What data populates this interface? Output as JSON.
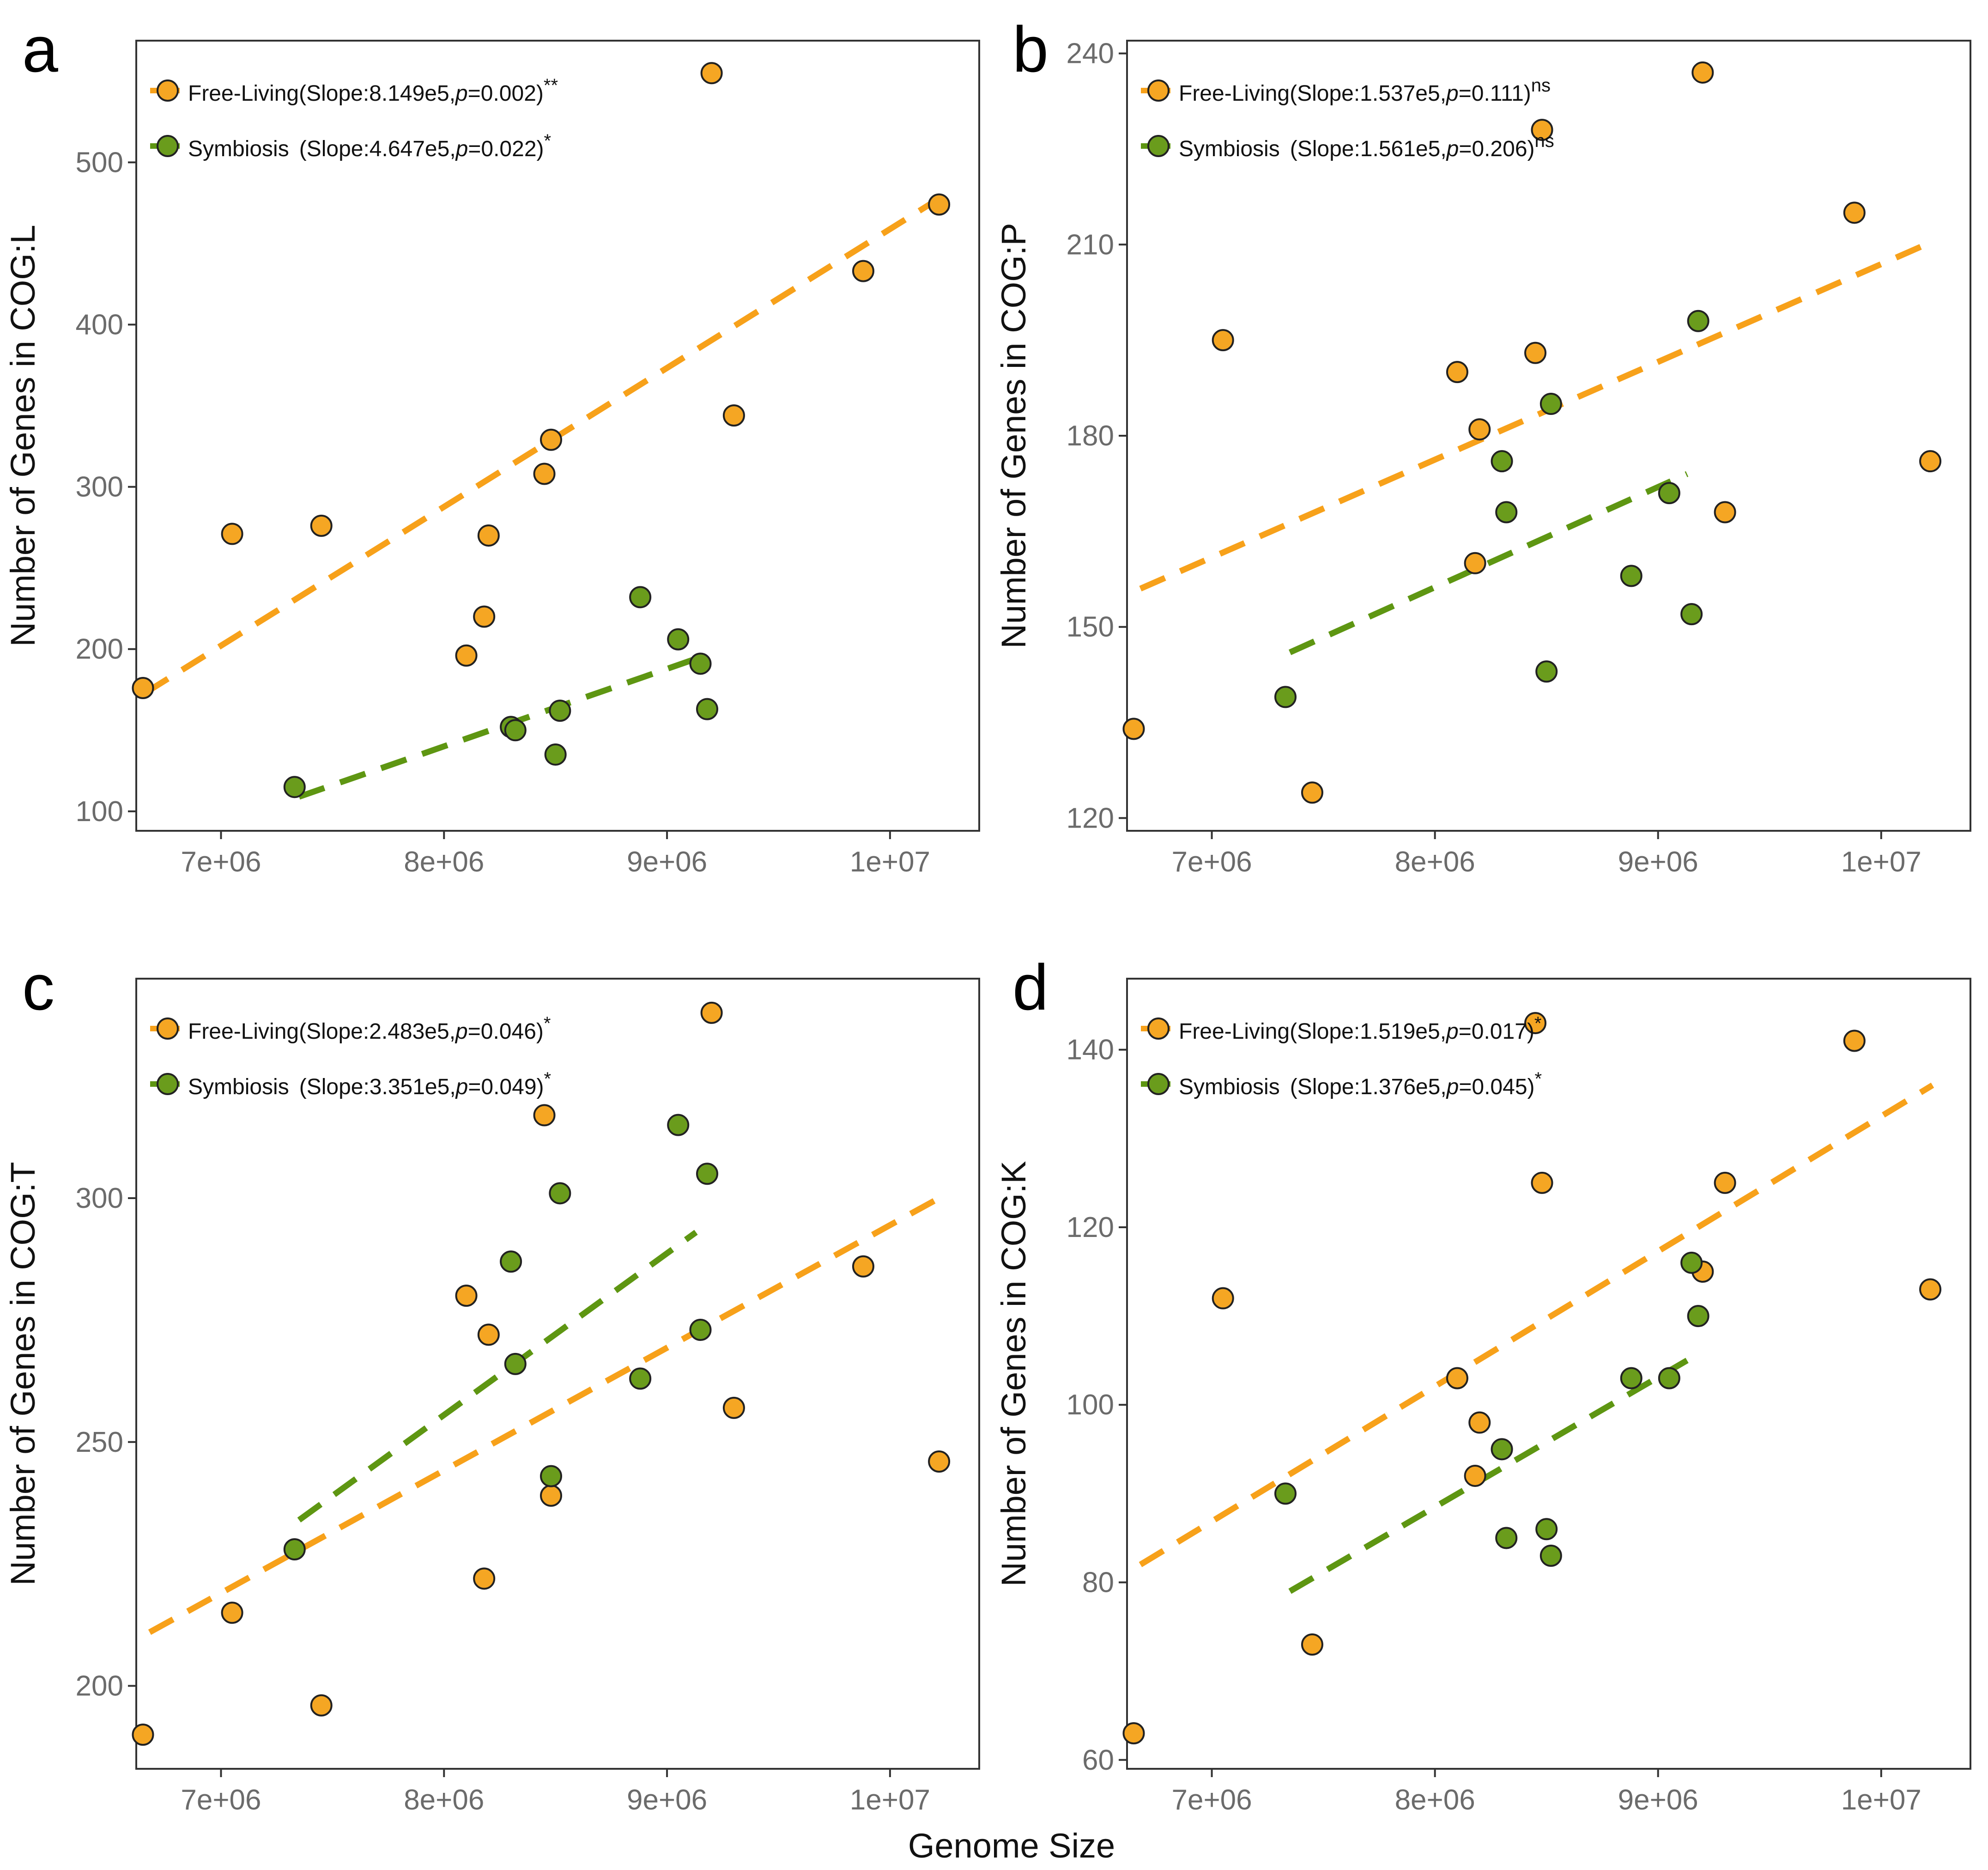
{
  "figure": {
    "xlabel": "Genome Size"
  },
  "colors": {
    "free_living": "#F5A623",
    "symbiosis": "#6A9C1C",
    "free_living_line": "#F7A11A",
    "symbiosis_line": "#5E9612",
    "axis": "#333333",
    "tick_label": "#6b6b6b",
    "marker_edge": "#222222"
  },
  "chart_data": [
    {
      "panel": "a",
      "type": "scatter",
      "ylabel": "Number of Genes in COG:L",
      "xlim": [
        6620000,
        10400000
      ],
      "ylim": [
        88,
        575
      ],
      "xticks": [
        {
          "v": 7000000,
          "label": "7e+06"
        },
        {
          "v": 8000000,
          "label": "8e+06"
        },
        {
          "v": 9000000,
          "label": "9e+06"
        },
        {
          "v": 10000000,
          "label": "1e+07"
        }
      ],
      "yticks": [
        {
          "v": 100,
          "label": "100"
        },
        {
          "v": 200,
          "label": "200"
        },
        {
          "v": 300,
          "label": "300"
        },
        {
          "v": 400,
          "label": "400"
        },
        {
          "v": 500,
          "label": "500"
        }
      ],
      "series": [
        {
          "name": "Free-Living",
          "legend": {
            "stat": "(Slope:8.149e5,",
            "p": "p",
            "pval": "=0.002)",
            "sig": "**"
          },
          "trend": [
            [
              6660000,
              173
            ],
            [
              10200000,
              476
            ]
          ],
          "points": [
            [
              6650000,
              176
            ],
            [
              7050000,
              271
            ],
            [
              7450000,
              276
            ],
            [
              8100000,
              196
            ],
            [
              8180000,
              220
            ],
            [
              8200000,
              270
            ],
            [
              8450000,
              308
            ],
            [
              8480000,
              329
            ],
            [
              9200000,
              555
            ],
            [
              9300000,
              344
            ],
            [
              9880000,
              433
            ],
            [
              10220000,
              474
            ]
          ]
        },
        {
          "name": "Symbiosis",
          "legend": {
            "stat": "(Slope:4.647e5,",
            "p": "p",
            "pval": "=0.022)",
            "sig": "*"
          },
          "trend": [
            [
              7350000,
              109
            ],
            [
              9150000,
              195
            ]
          ],
          "points": [
            [
              7330000,
              115
            ],
            [
              8300000,
              152
            ],
            [
              8320000,
              150
            ],
            [
              8500000,
              135
            ],
            [
              8520000,
              162
            ],
            [
              8880000,
              232
            ],
            [
              9050000,
              206
            ],
            [
              9150000,
              191
            ],
            [
              9180000,
              163
            ]
          ]
        }
      ]
    },
    {
      "panel": "b",
      "type": "scatter",
      "ylabel": "Number of Genes in COG:P",
      "xlim": [
        6620000,
        10400000
      ],
      "ylim": [
        118,
        242
      ],
      "xticks": [
        {
          "v": 7000000,
          "label": "7e+06"
        },
        {
          "v": 8000000,
          "label": "8e+06"
        },
        {
          "v": 9000000,
          "label": "9e+06"
        },
        {
          "v": 10000000,
          "label": "1e+07"
        }
      ],
      "yticks": [
        {
          "v": 120,
          "label": "120"
        },
        {
          "v": 150,
          "label": "150"
        },
        {
          "v": 180,
          "label": "180"
        },
        {
          "v": 210,
          "label": "210"
        },
        {
          "v": 240,
          "label": "240"
        }
      ],
      "series": [
        {
          "name": "Free-Living",
          "legend": {
            "stat": "(Slope:1.537e5,",
            "p": "p",
            "pval": "=0.111)",
            "sig": "ns"
          },
          "trend": [
            [
              6680000,
              156
            ],
            [
              10200000,
              210
            ]
          ],
          "points": [
            [
              6650000,
              134
            ],
            [
              7050000,
              195
            ],
            [
              7450000,
              124
            ],
            [
              8100000,
              190
            ],
            [
              8180000,
              160
            ],
            [
              8200000,
              181
            ],
            [
              8450000,
              193
            ],
            [
              8480000,
              228
            ],
            [
              9200000,
              237
            ],
            [
              9300000,
              168
            ],
            [
              9880000,
              215
            ],
            [
              10220000,
              176
            ]
          ]
        },
        {
          "name": "Symbiosis",
          "legend": {
            "stat": "(Slope:1.561e5,",
            "p": "p",
            "pval": "=0.206)",
            "sig": "ns"
          },
          "trend": [
            [
              7350000,
              146
            ],
            [
              9130000,
              174
            ]
          ],
          "points": [
            [
              7330000,
              139
            ],
            [
              8300000,
              176
            ],
            [
              8320000,
              168
            ],
            [
              8500000,
              143
            ],
            [
              8520000,
              185
            ],
            [
              8880000,
              158
            ],
            [
              9050000,
              171
            ],
            [
              9150000,
              152
            ],
            [
              9180000,
              198
            ]
          ]
        }
      ]
    },
    {
      "panel": "c",
      "type": "scatter",
      "ylabel": "Number of Genes in COG:T",
      "xlim": [
        6620000,
        10400000
      ],
      "ylim": [
        183,
        345
      ],
      "xticks": [
        {
          "v": 7000000,
          "label": "7e+06"
        },
        {
          "v": 8000000,
          "label": "8e+06"
        },
        {
          "v": 9000000,
          "label": "9e+06"
        },
        {
          "v": 10000000,
          "label": "1e+07"
        }
      ],
      "yticks": [
        {
          "v": 200,
          "label": "200"
        },
        {
          "v": 250,
          "label": "250"
        },
        {
          "v": 300,
          "label": "300"
        }
      ],
      "series": [
        {
          "name": "Free-Living",
          "legend": {
            "stat": "(Slope:2.483e5,",
            "p": "p",
            "pval": "=0.046)",
            "sig": "*"
          },
          "trend": [
            [
              6680000,
              211
            ],
            [
              10220000,
              300
            ]
          ],
          "points": [
            [
              6650000,
              190
            ],
            [
              7050000,
              215
            ],
            [
              7450000,
              196
            ],
            [
              8100000,
              280
            ],
            [
              8180000,
              222
            ],
            [
              8200000,
              272
            ],
            [
              8450000,
              317
            ],
            [
              8480000,
              239
            ],
            [
              9200000,
              338
            ],
            [
              9300000,
              257
            ],
            [
              9880000,
              286
            ],
            [
              10220000,
              246
            ]
          ]
        },
        {
          "name": "Symbiosis",
          "legend": {
            "stat": "(Slope:3.351e5,",
            "p": "p",
            "pval": "=0.049)",
            "sig": "*"
          },
          "trend": [
            [
              7350000,
              234
            ],
            [
              9130000,
              293
            ]
          ],
          "points": [
            [
              7330000,
              228
            ],
            [
              8300000,
              287
            ],
            [
              8320000,
              266
            ],
            [
              8480000,
              243
            ],
            [
              8520000,
              301
            ],
            [
              8880000,
              263
            ],
            [
              9050000,
              315
            ],
            [
              9150000,
              273
            ],
            [
              9180000,
              305
            ]
          ]
        }
      ]
    },
    {
      "panel": "d",
      "type": "scatter",
      "ylabel": "Number of Genes in COG:K",
      "xlim": [
        6620000,
        10400000
      ],
      "ylim": [
        59,
        148
      ],
      "xticks": [
        {
          "v": 7000000,
          "label": "7e+06"
        },
        {
          "v": 8000000,
          "label": "8e+06"
        },
        {
          "v": 9000000,
          "label": "9e+06"
        },
        {
          "v": 10000000,
          "label": "1e+07"
        }
      ],
      "yticks": [
        {
          "v": 60,
          "label": "60"
        },
        {
          "v": 80,
          "label": "80"
        },
        {
          "v": 100,
          "label": "100"
        },
        {
          "v": 120,
          "label": "120"
        },
        {
          "v": 140,
          "label": "140"
        }
      ],
      "series": [
        {
          "name": "Free-Living",
          "legend": {
            "stat": "(Slope:1.519e5,",
            "p": "p",
            "pval": "=0.017)",
            "sig": "*"
          },
          "trend": [
            [
              6680000,
              82
            ],
            [
              10230000,
              136
            ]
          ],
          "points": [
            [
              6650000,
              63
            ],
            [
              7050000,
              112
            ],
            [
              7450000,
              73
            ],
            [
              8100000,
              103
            ],
            [
              8180000,
              92
            ],
            [
              8200000,
              98
            ],
            [
              8450000,
              143
            ],
            [
              8480000,
              125
            ],
            [
              9200000,
              115
            ],
            [
              9300000,
              125
            ],
            [
              9880000,
              141
            ],
            [
              10220000,
              113
            ]
          ]
        },
        {
          "name": "Symbiosis",
          "legend": {
            "stat": "(Slope:1.376e5,",
            "p": "p",
            "pval": "=0.045)",
            "sig": "*"
          },
          "trend": [
            [
              7350000,
              79
            ],
            [
              9130000,
              105
            ]
          ],
          "points": [
            [
              7330000,
              90
            ],
            [
              8300000,
              95
            ],
            [
              8320000,
              85
            ],
            [
              8500000,
              86
            ],
            [
              8520000,
              83
            ],
            [
              8880000,
              103
            ],
            [
              9050000,
              103
            ],
            [
              9150000,
              116
            ],
            [
              9180000,
              110
            ]
          ]
        }
      ]
    }
  ]
}
